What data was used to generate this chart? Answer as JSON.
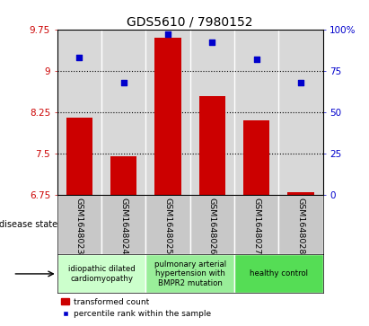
{
  "title": "GDS5610 / 7980152",
  "samples": [
    "GSM1648023",
    "GSM1648024",
    "GSM1648025",
    "GSM1648026",
    "GSM1648027",
    "GSM1648028"
  ],
  "transformed_count": [
    8.15,
    7.45,
    9.6,
    8.55,
    8.1,
    6.8
  ],
  "percentile_rank": [
    83,
    68,
    97,
    92,
    82,
    68
  ],
  "bar_bottom": 6.75,
  "ylim_left": [
    6.75,
    9.75
  ],
  "ylim_right": [
    0,
    100
  ],
  "yticks_left": [
    6.75,
    7.5,
    8.25,
    9.0,
    9.75
  ],
  "ytick_labels_left": [
    "6.75",
    "7.5",
    "8.25",
    "9",
    "9.75"
  ],
  "yticks_right": [
    0,
    25,
    50,
    75,
    100
  ],
  "ytick_labels_right": [
    "0",
    "25",
    "50",
    "75",
    "100%"
  ],
  "hlines": [
    7.5,
    8.25,
    9.0
  ],
  "bar_color": "#cc0000",
  "dot_color": "#0000cc",
  "disease_groups": [
    {
      "label": "idiopathic dilated\ncardiomyopathy",
      "indices": [
        0,
        1
      ],
      "color": "#ccffcc"
    },
    {
      "label": "pulmonary arterial\nhypertension with\nBMPR2 mutation",
      "indices": [
        2,
        3
      ],
      "color": "#99ee99"
    },
    {
      "label": "healthy control",
      "indices": [
        4,
        5
      ],
      "color": "#55dd55"
    }
  ],
  "legend_bar_label": "transformed count",
  "legend_dot_label": "percentile rank within the sample",
  "disease_state_label": "disease state",
  "left_tick_color": "#cc0000",
  "right_tick_color": "#0000cc",
  "background_color": "#ffffff",
  "plot_bg_color": "#d8d8d8",
  "label_bg_color": "#c8c8c8"
}
